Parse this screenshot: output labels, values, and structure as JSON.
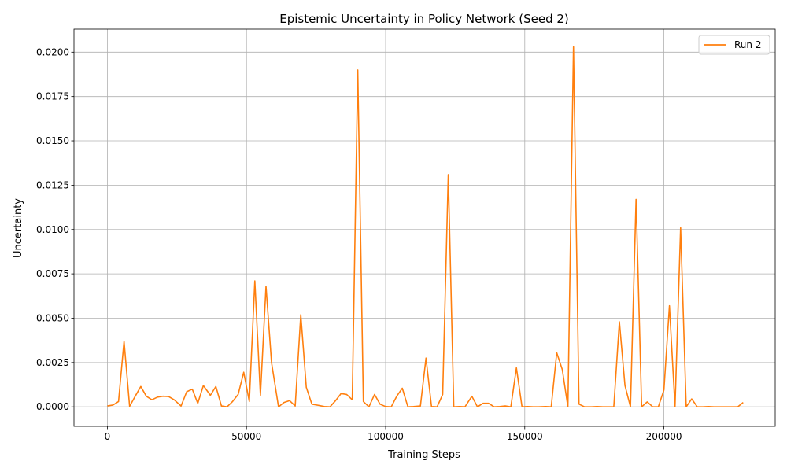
{
  "chart_data": {
    "type": "line",
    "title": "Epistemic Uncertainty in Policy Network (Seed 2)",
    "xlabel": "Training Steps",
    "ylabel": "Uncertainty",
    "xlim": [
      -12000,
      240000
    ],
    "ylim": [
      -0.0011,
      0.0213
    ],
    "xticks": [
      0,
      50000,
      100000,
      150000,
      200000
    ],
    "xtick_labels": [
      "0",
      "50000",
      "100000",
      "150000",
      "200000"
    ],
    "yticks": [
      0.0,
      0.0025,
      0.005,
      0.0075,
      0.01,
      0.0125,
      0.015,
      0.0175,
      0.02
    ],
    "ytick_labels": [
      "0.0000",
      "0.0025",
      "0.0050",
      "0.0075",
      "0.0100",
      "0.0125",
      "0.0150",
      "0.0175",
      "0.0200"
    ],
    "grid": true,
    "legend_position": "top-right",
    "series": [
      {
        "name": "Run 2",
        "color": "#ff7f0e",
        "points": [
          [
            0,
            5e-05
          ],
          [
            2000,
            0.0001
          ],
          [
            4000,
            0.0003
          ],
          [
            6000,
            0.0037
          ],
          [
            8000,
            3e-05
          ],
          [
            10000,
            0.0006
          ],
          [
            12000,
            0.00115
          ],
          [
            14000,
            0.0006
          ],
          [
            16000,
            0.0004
          ],
          [
            18000,
            0.00055
          ],
          [
            20000,
            0.0006
          ],
          [
            22000,
            0.00058
          ],
          [
            24000,
            0.0004
          ],
          [
            26500,
            5e-05
          ],
          [
            28500,
            0.00085
          ],
          [
            30500,
            0.001
          ],
          [
            32500,
            0.0002
          ],
          [
            34500,
            0.0012
          ],
          [
            37000,
            0.00065
          ],
          [
            39000,
            0.00115
          ],
          [
            41000,
            5e-05
          ],
          [
            43000,
            0.0
          ],
          [
            45000,
            0.0003
          ],
          [
            47000,
            0.0007
          ],
          [
            49000,
            0.00195
          ],
          [
            51000,
            0.0003
          ],
          [
            53000,
            0.0071
          ],
          [
            55000,
            0.00065
          ],
          [
            57000,
            0.0068
          ],
          [
            59000,
            0.0025
          ],
          [
            61500,
            0.0
          ],
          [
            63500,
            0.00025
          ],
          [
            65500,
            0.00035
          ],
          [
            67500,
            5e-05
          ],
          [
            69500,
            0.0052
          ],
          [
            71500,
            0.0011
          ],
          [
            73500,
            0.00015
          ],
          [
            76000,
            8e-05
          ],
          [
            78000,
            2e-05
          ],
          [
            80000,
            0.0
          ],
          [
            82000,
            0.00035
          ],
          [
            84000,
            0.00075
          ],
          [
            86000,
            0.0007
          ],
          [
            88000,
            0.0004
          ],
          [
            90000,
            0.019
          ],
          [
            92000,
            0.0003
          ],
          [
            94000,
            0.0
          ],
          [
            96000,
            0.0007
          ],
          [
            98000,
            0.00015
          ],
          [
            100000,
            2e-05
          ],
          [
            102000,
            0.0
          ],
          [
            104000,
            0.0006
          ],
          [
            106000,
            0.00105
          ],
          [
            108000,
            0.0
          ],
          [
            110000,
            2e-05
          ],
          [
            112500,
            5e-05
          ],
          [
            114500,
            0.00275
          ],
          [
            116500,
            2e-05
          ],
          [
            118500,
            0.0
          ],
          [
            120500,
            0.0007
          ],
          [
            122500,
            0.0131
          ],
          [
            124500,
            0.0
          ],
          [
            126500,
            2e-05
          ],
          [
            128500,
            0.0
          ],
          [
            131000,
            0.0006
          ],
          [
            133000,
            0.0
          ],
          [
            135000,
            0.0002
          ],
          [
            137000,
            0.0002
          ],
          [
            139000,
            0.0
          ],
          [
            141000,
            2e-05
          ],
          [
            143000,
            5e-05
          ],
          [
            145000,
            0.0
          ],
          [
            147000,
            0.0022
          ],
          [
            149000,
            0.0
          ],
          [
            151000,
            2e-05
          ],
          [
            153000,
            0.0
          ],
          [
            155000,
            0.0
          ],
          [
            157500,
            2e-05
          ],
          [
            159500,
            0.0
          ],
          [
            161500,
            0.00305
          ],
          [
            163500,
            0.0021
          ],
          [
            165500,
            0.0
          ],
          [
            167500,
            0.0203
          ],
          [
            169500,
            0.00015
          ],
          [
            171500,
            0.0
          ],
          [
            174000,
            0.0
          ],
          [
            176000,
            2e-05
          ],
          [
            178000,
            0.0
          ],
          [
            180000,
            0.0
          ],
          [
            182000,
            0.0
          ],
          [
            184000,
            0.0048
          ],
          [
            186000,
            0.0012
          ],
          [
            188000,
            0.0
          ],
          [
            190000,
            0.0117
          ],
          [
            192000,
            0.0
          ],
          [
            194000,
            0.00028
          ],
          [
            196000,
            0.0
          ],
          [
            198000,
            0.0
          ],
          [
            200000,
            0.00095
          ],
          [
            202000,
            0.0057
          ],
          [
            204000,
            0.0
          ],
          [
            206000,
            0.0101
          ],
          [
            208000,
            0.0
          ],
          [
            210000,
            0.00045
          ],
          [
            212000,
            0.0
          ],
          [
            214000,
            0.0
          ],
          [
            216000,
            2e-05
          ],
          [
            218000,
            0.0
          ],
          [
            220000,
            0.0
          ],
          [
            222000,
            0.0
          ],
          [
            224000,
            0.0
          ],
          [
            226500,
            0.0
          ],
          [
            228500,
            0.00025
          ]
        ]
      }
    ]
  }
}
